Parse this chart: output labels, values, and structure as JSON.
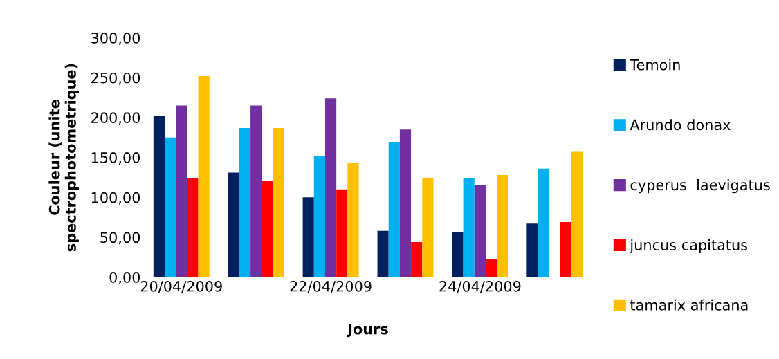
{
  "chart_data": {
    "type": "bar",
    "xlabel": "Jours",
    "ylabel": "Couleur (unite\nspectrophotometrique)",
    "categories": [
      "20/04/2009",
      null,
      "22/04/2009",
      null,
      "24/04/2009",
      null
    ],
    "series": [
      {
        "name": "Temoin",
        "color": "#002060",
        "values": [
          202,
          131,
          100,
          58,
          56,
          67
        ]
      },
      {
        "name": "Arundo donax",
        "color": "#00b0f0",
        "values": [
          175,
          187,
          152,
          169,
          124,
          136
        ]
      },
      {
        "name": "cyperus  laevigatus",
        "color": "#7030a0",
        "values": [
          215,
          215,
          224,
          185,
          115,
          null
        ]
      },
      {
        "name": "juncus capitatus",
        "color": "#ff0000",
        "values": [
          124,
          121,
          110,
          44,
          23,
          69
        ]
      },
      {
        "name": "tamarix africana",
        "color": "#ffc000",
        "values": [
          252,
          187,
          143,
          124,
          128,
          157
        ]
      }
    ],
    "ylim": [
      0,
      300
    ],
    "yticks": [
      {
        "value": 0,
        "label": "0,00"
      },
      {
        "value": 50,
        "label": "50,00"
      },
      {
        "value": 100,
        "label": "100,00"
      },
      {
        "value": 150,
        "label": "150,00"
      },
      {
        "value": 200,
        "label": "200,00"
      },
      {
        "value": 250,
        "label": "250,00"
      },
      {
        "value": 300,
        "label": "300,00"
      }
    ],
    "grid": false,
    "legend": "right"
  }
}
